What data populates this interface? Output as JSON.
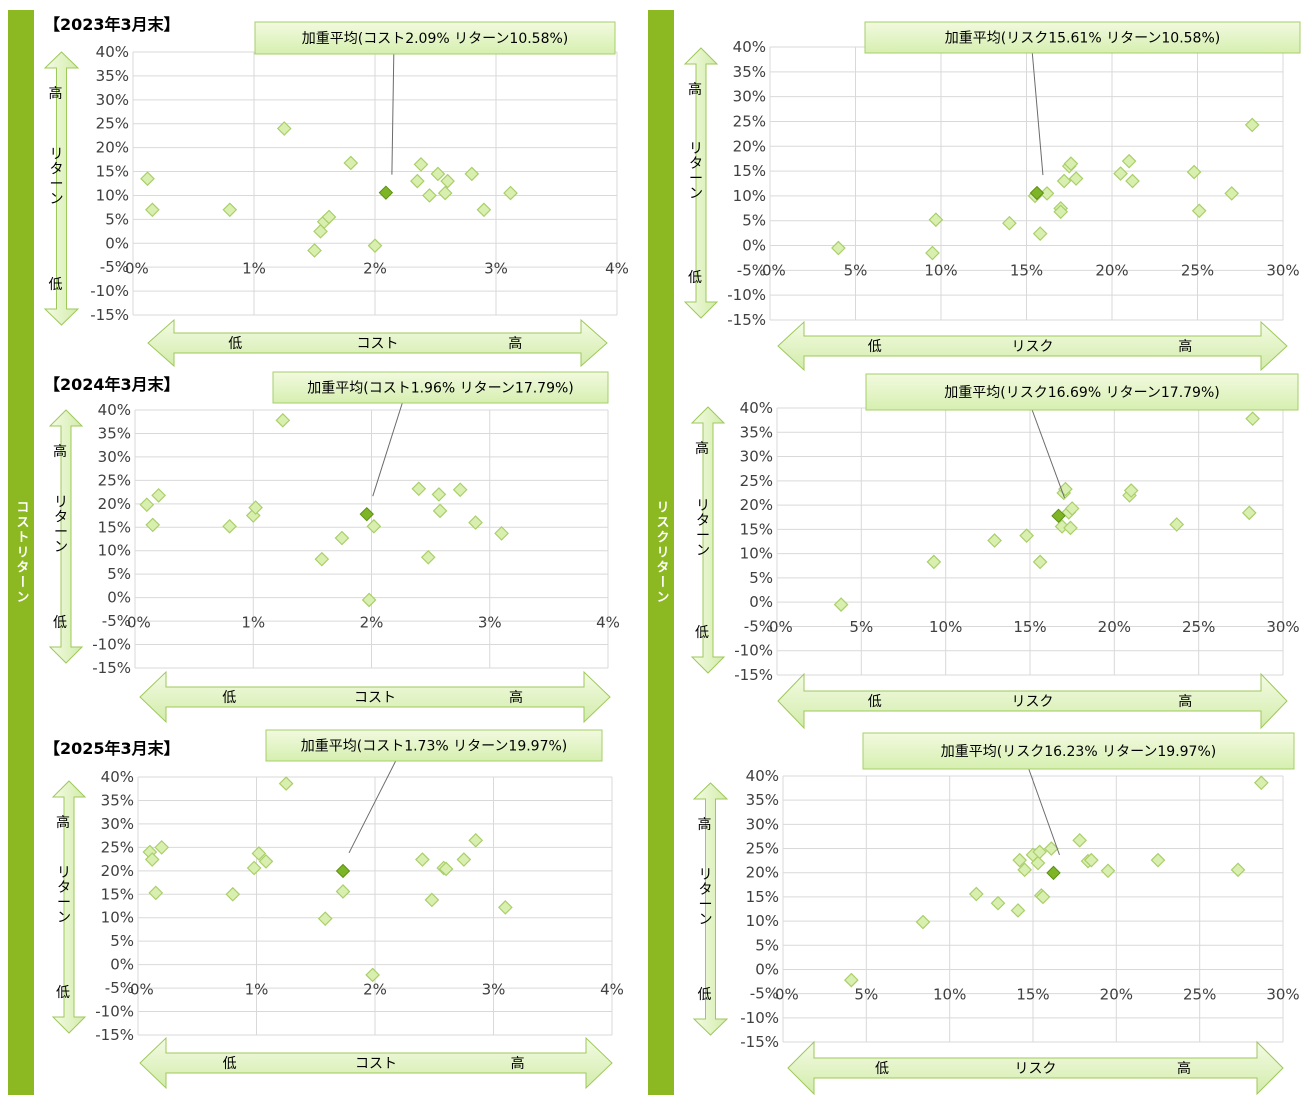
{
  "sidebars": {
    "left": "コストリターン",
    "right": "リスクリターン"
  },
  "colors": {
    "sidebar": "#8cb921",
    "marker": "#d9efb0",
    "marker_stroke": "#a9cf6a",
    "highlight": "#7eb526",
    "grid": "#d9d9d9"
  },
  "vertical_arrow": {
    "high": "高",
    "label": "リターン",
    "low": "低"
  },
  "chart_data": [
    {
      "type": "scatter",
      "title": "【2023年3月末】",
      "callout": "加重平均(コスト2.09%  リターン10.58%)",
      "xlabel": "コスト",
      "x_low": "低",
      "x_high": "高",
      "xlim": [
        0,
        4
      ],
      "ylim": [
        -15,
        40
      ],
      "x_ticks": [
        "0%",
        "1%",
        "2%",
        "3%",
        "4%"
      ],
      "y_ticks": [
        "40%",
        "35%",
        "30%",
        "25%",
        "20%",
        "15%",
        "10%",
        "5%",
        "0%",
        "-5%",
        "-10%",
        "-15%"
      ],
      "points": [
        [
          0.12,
          13.5
        ],
        [
          0.16,
          7
        ],
        [
          0.8,
          7
        ],
        [
          1.25,
          24
        ],
        [
          1.5,
          -1.5
        ],
        [
          1.55,
          2.5
        ],
        [
          1.58,
          4.5
        ],
        [
          1.62,
          5.5
        ],
        [
          1.8,
          16.8
        ],
        [
          2.0,
          -0.5
        ],
        [
          2.35,
          13
        ],
        [
          2.38,
          16.5
        ],
        [
          2.45,
          10
        ],
        [
          2.52,
          14.5
        ],
        [
          2.58,
          10.5
        ],
        [
          2.6,
          13
        ],
        [
          2.8,
          14.5
        ],
        [
          2.9,
          7
        ],
        [
          3.12,
          10.5
        ]
      ],
      "highlight": [
        2.09,
        10.58
      ]
    },
    {
      "type": "scatter",
      "title": "【2024年3月末】",
      "callout": "加重平均(コスト1.96%  リターン17.79%)",
      "xlabel": "コスト",
      "x_low": "低",
      "x_high": "高",
      "xlim": [
        0,
        4
      ],
      "ylim": [
        -15,
        40
      ],
      "x_ticks": [
        "0%",
        "1%",
        "2%",
        "3%",
        "4%"
      ],
      "y_ticks": [
        "40%",
        "35%",
        "30%",
        "25%",
        "20%",
        "15%",
        "10%",
        "5%",
        "0%",
        "-5%",
        "-10%",
        "-15%"
      ],
      "points": [
        [
          0.1,
          19.8
        ],
        [
          0.15,
          15.5
        ],
        [
          0.2,
          21.8
        ],
        [
          0.8,
          15.2
        ],
        [
          1.0,
          17.5
        ],
        [
          1.02,
          19.2
        ],
        [
          1.25,
          37.8
        ],
        [
          1.58,
          8.2
        ],
        [
          1.75,
          12.7
        ],
        [
          1.98,
          -0.5
        ],
        [
          2.02,
          15.2
        ],
        [
          2.4,
          23.2
        ],
        [
          2.48,
          8.6
        ],
        [
          2.57,
          22
        ],
        [
          2.58,
          18.5
        ],
        [
          2.75,
          23
        ],
        [
          2.88,
          16
        ],
        [
          3.1,
          13.7
        ]
      ],
      "highlight": [
        1.96,
        17.79
      ]
    },
    {
      "type": "scatter",
      "title": "【2025年3月末】",
      "callout": "加重平均(コスト1.73%  リターン19.97%)",
      "xlabel": "コスト",
      "x_low": "低",
      "x_high": "高",
      "xlim": [
        0,
        4
      ],
      "ylim": [
        -15,
        40
      ],
      "x_ticks": [
        "0%",
        "1%",
        "2%",
        "3%",
        "4%"
      ],
      "y_ticks": [
        "40%",
        "35%",
        "30%",
        "25%",
        "20%",
        "15%",
        "10%",
        "5%",
        "0%",
        "-5%",
        "-10%",
        "-15%"
      ],
      "points": [
        [
          0.1,
          24
        ],
        [
          0.12,
          22.4
        ],
        [
          0.15,
          15.3
        ],
        [
          0.2,
          25
        ],
        [
          0.8,
          15
        ],
        [
          0.98,
          20.6
        ],
        [
          1.02,
          23.7
        ],
        [
          1.08,
          22
        ],
        [
          1.25,
          38.6
        ],
        [
          1.58,
          9.8
        ],
        [
          1.73,
          15.6
        ],
        [
          1.98,
          -2.2
        ],
        [
          2.4,
          22.4
        ],
        [
          2.48,
          13.8
        ],
        [
          2.58,
          20.6
        ],
        [
          2.6,
          20.4
        ],
        [
          2.75,
          22.4
        ],
        [
          2.85,
          26.5
        ],
        [
          3.1,
          12.2
        ]
      ],
      "highlight": [
        1.73,
        19.97
      ]
    },
    {
      "type": "scatter",
      "title": "",
      "callout": "加重平均(リスク15.61%  リターン10.58%)",
      "xlabel": "リスク",
      "x_low": "低",
      "x_high": "高",
      "xlim": [
        0,
        30
      ],
      "ylim": [
        -15,
        40
      ],
      "x_ticks": [
        "0%",
        "5%",
        "10%",
        "15%",
        "20%",
        "25%",
        "30%"
      ],
      "y_ticks": [
        "40%",
        "35%",
        "30%",
        "25%",
        "20%",
        "15%",
        "10%",
        "5%",
        "0%",
        "-5%",
        "-10%",
        "-15%"
      ],
      "points": [
        [
          4,
          -0.5
        ],
        [
          9.5,
          -1.5
        ],
        [
          9.7,
          5.2
        ],
        [
          14,
          4.5
        ],
        [
          15.5,
          10
        ],
        [
          15.8,
          2.4
        ],
        [
          16.2,
          10.5
        ],
        [
          17,
          7.5
        ],
        [
          17,
          6.8
        ],
        [
          17.2,
          13
        ],
        [
          17.5,
          16
        ],
        [
          17.6,
          16.5
        ],
        [
          17.9,
          13.5
        ],
        [
          20.5,
          14.5
        ],
        [
          21,
          17
        ],
        [
          21.2,
          13
        ],
        [
          24.8,
          14.8
        ],
        [
          25.1,
          7
        ],
        [
          27,
          10.5
        ],
        [
          28.2,
          24.3
        ]
      ],
      "highlight": [
        15.61,
        10.58
      ]
    },
    {
      "type": "scatter",
      "title": "",
      "callout": "加重平均(リスク16.69%  リターン17.79%)",
      "xlabel": "リスク",
      "x_low": "低",
      "x_high": "高",
      "xlim": [
        0,
        30
      ],
      "ylim": [
        -15,
        40
      ],
      "x_ticks": [
        "0%",
        "5%",
        "10%",
        "15%",
        "20%",
        "25%",
        "30%"
      ],
      "y_ticks": [
        "40%",
        "35%",
        "30%",
        "25%",
        "20%",
        "15%",
        "10%",
        "5%",
        "0%",
        "-5%",
        "-10%",
        "-15%"
      ],
      "points": [
        [
          3.8,
          -0.5
        ],
        [
          9.3,
          8.3
        ],
        [
          12.9,
          12.7
        ],
        [
          14.8,
          13.7
        ],
        [
          15.6,
          8.3
        ],
        [
          16.9,
          15.6
        ],
        [
          17.0,
          22.5
        ],
        [
          17.1,
          23.3
        ],
        [
          17.3,
          18.5
        ],
        [
          17.4,
          15.3
        ],
        [
          17.5,
          19.3
        ],
        [
          20.9,
          22
        ],
        [
          21,
          23
        ],
        [
          23.7,
          16
        ],
        [
          28,
          18.4
        ],
        [
          28.2,
          37.8
        ]
      ],
      "highlight": [
        16.69,
        17.79
      ]
    },
    {
      "type": "scatter",
      "title": "",
      "callout": "加重平均(リスク16.23%  リターン19.97%)",
      "xlabel": "リスク",
      "x_low": "低",
      "x_high": "高",
      "xlim": [
        0,
        30
      ],
      "ylim": [
        -15,
        40
      ],
      "x_ticks": [
        "0%",
        "5%",
        "10%",
        "15%",
        "20%",
        "25%",
        "30%"
      ],
      "y_ticks": [
        "40%",
        "35%",
        "30%",
        "25%",
        "20%",
        "15%",
        "10%",
        "5%",
        "0%",
        "-5%",
        "-10%",
        "-15%"
      ],
      "points": [
        [
          4.1,
          -2.2
        ],
        [
          8.4,
          9.8
        ],
        [
          11.6,
          15.6
        ],
        [
          12.9,
          13.7
        ],
        [
          14.1,
          12.2
        ],
        [
          14.2,
          22.6
        ],
        [
          14.5,
          20.6
        ],
        [
          15.0,
          23.7
        ],
        [
          15.3,
          22
        ],
        [
          15.4,
          24.3
        ],
        [
          15.5,
          15.3
        ],
        [
          15.6,
          15
        ],
        [
          16.1,
          25
        ],
        [
          17.8,
          26.7
        ],
        [
          18.3,
          22.4
        ],
        [
          18.5,
          22.6
        ],
        [
          19.5,
          20.4
        ],
        [
          22.5,
          22.6
        ],
        [
          27.3,
          20.6
        ],
        [
          28.7,
          38.6
        ]
      ],
      "highlight": [
        16.23,
        19.97
      ]
    }
  ]
}
